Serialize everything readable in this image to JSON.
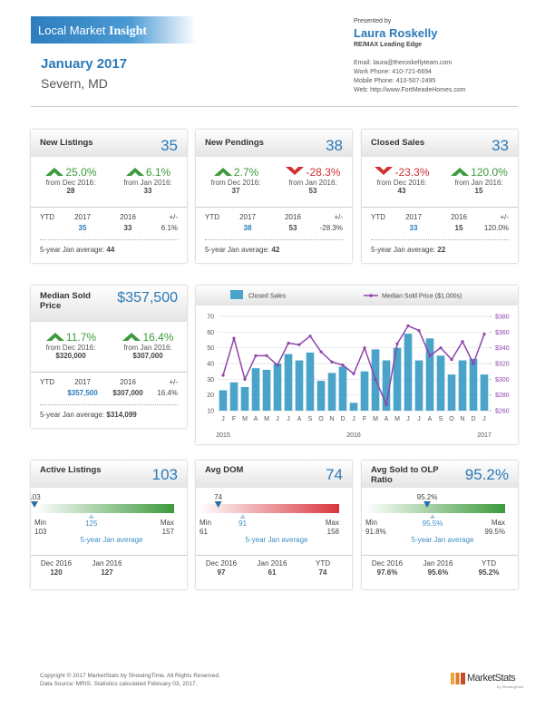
{
  "header": {
    "brand": "Local Market",
    "brand_bold": "Insight",
    "month": "January 2017",
    "location": "Severn, MD",
    "presented_by": "Presented by",
    "agent": "Laura Roskelly",
    "company": "RE/MAX Leading Edge",
    "contact": [
      "Email: laura@theroskellyteam.com",
      "Work Phone: 410-721-6694",
      "Mobile Phone: 410-507-2495",
      "Web: http://www.FortMeadeHomes.com"
    ]
  },
  "cards": [
    {
      "title": "New Listings",
      "value": "35",
      "changes": [
        {
          "trend": "up",
          "pct": "25.0%",
          "label": "from Dec 2016:",
          "base": "28"
        },
        {
          "trend": "up",
          "pct": "6.1%",
          "label": "from Jan 2016:",
          "base": "33"
        }
      ],
      "ytd": {
        "headers": [
          "YTD",
          "2017",
          "2016",
          "+/-"
        ],
        "values": [
          "35",
          "33",
          "6.1%"
        ]
      },
      "average": {
        "label": "5-year Jan average:",
        "value": "44"
      }
    },
    {
      "title": "New Pendings",
      "value": "38",
      "changes": [
        {
          "trend": "up",
          "pct": "2.7%",
          "label": "from Dec 2016:",
          "base": "37"
        },
        {
          "trend": "down",
          "pct": "-28.3%",
          "label": "from Jan 2016:",
          "base": "53"
        }
      ],
      "ytd": {
        "headers": [
          "YTD",
          "2017",
          "2016",
          "+/-"
        ],
        "values": [
          "38",
          "53",
          "-28.3%"
        ]
      },
      "average": {
        "label": "5-year Jan average:",
        "value": "42"
      }
    },
    {
      "title": "Closed Sales",
      "value": "33",
      "changes": [
        {
          "trend": "down",
          "pct": "-23.3%",
          "label": "from Dec 2016:",
          "base": "43"
        },
        {
          "trend": "up",
          "pct": "120.0%",
          "label": "from Jan 2016:",
          "base": "15"
        }
      ],
      "ytd": {
        "headers": [
          "YTD",
          "2017",
          "2016",
          "+/-"
        ],
        "values": [
          "33",
          "15",
          "120.0%"
        ]
      },
      "average": {
        "label": "5-year Jan average:",
        "value": "22"
      }
    },
    {
      "title": "Median Sold Price",
      "value": "$357,500",
      "changes": [
        {
          "trend": "up",
          "pct": "11.7%",
          "label": "from Dec 2016:",
          "base": "$320,000"
        },
        {
          "trend": "up",
          "pct": "16.4%",
          "label": "from Jan 2016:",
          "base": "$307,000"
        }
      ],
      "ytd": {
        "headers": [
          "YTD",
          "2017",
          "2016",
          "+/-"
        ],
        "values": [
          "$357,500",
          "$307,000",
          "16.4%"
        ]
      },
      "average": {
        "label": "5-year Jan average:",
        "value": "$314,099"
      }
    }
  ],
  "gauge_cards": [
    {
      "title": "Active Listings",
      "value": "103",
      "gauge": {
        "color": "#3d9a3d",
        "current": 103,
        "min_label": "Min",
        "min": 103,
        "max_label": "Max",
        "max": 157,
        "average": 125,
        "average_label": "5-year Jan average"
      },
      "history": [
        {
          "label": "Dec 2016",
          "value": "120"
        },
        {
          "label": "Jan 2016",
          "value": "127"
        }
      ]
    },
    {
      "title": "Avg DOM",
      "value": "74",
      "gauge": {
        "color": "#d9363e",
        "current": 74,
        "min_label": "Min",
        "min": 61,
        "max_label": "Max",
        "max": 158,
        "average": 91,
        "average_label": "5-year Jan average"
      },
      "history": [
        {
          "label": "Dec 2016",
          "value": "97"
        },
        {
          "label": "Jan 2016",
          "value": "61"
        },
        {
          "label": "YTD",
          "value": "74"
        }
      ]
    },
    {
      "title": "Avg Sold to OLP Ratio",
      "value": "95.2%",
      "gauge": {
        "color": "#3d9a3d",
        "current": {
          "value": 95.2,
          "label": "95.2%"
        },
        "min_label": "Min",
        "min": {
          "value": 91.8,
          "label": "91.8%"
        },
        "max_label": "Max",
        "max": {
          "value": 99.5,
          "label": "99.5%"
        },
        "average": {
          "value": 95.5,
          "label": "95.5%"
        },
        "average_label": "5-year Jan average"
      },
      "history": [
        {
          "label": "Dec 2016",
          "value": "97.6%"
        },
        {
          "label": "Jan 2016",
          "value": "95.6%"
        },
        {
          "label": "YTD",
          "value": "95.2%"
        }
      ]
    }
  ],
  "chart_data": {
    "type": "bar",
    "categories": [
      "J",
      "F",
      "M",
      "A",
      "M",
      "J",
      "J",
      "A",
      "S",
      "O",
      "N",
      "D",
      "J",
      "F",
      "M",
      "A",
      "M",
      "J",
      "J",
      "A",
      "S",
      "O",
      "N",
      "D",
      "J"
    ],
    "years": [
      "2015",
      "2016",
      "2017"
    ],
    "series": [
      {
        "name": "Closed Sales",
        "type": "bar",
        "color": "#4aa3c9",
        "values": [
          23,
          28,
          25,
          37,
          36,
          40,
          46,
          42,
          47,
          29,
          34,
          38,
          15,
          35,
          49,
          42,
          50,
          59,
          42,
          56,
          45,
          33,
          42,
          43,
          33
        ]
      },
      {
        "name": "Median Sold Price ($1,000s)",
        "type": "line",
        "axis": "y2",
        "color": "#8e44ad",
        "values": [
          305,
          352,
          300,
          330,
          330,
          318,
          346,
          344,
          355,
          335,
          322,
          318,
          307,
          340,
          300,
          268,
          345,
          368,
          362,
          330,
          340,
          325,
          348,
          320,
          357.5
        ]
      }
    ],
    "ylim": [
      10,
      70
    ],
    "yticks": [
      10,
      20,
      30,
      40,
      50,
      60,
      70
    ],
    "y2lim": [
      260,
      380
    ],
    "y2ticks": [
      {
        "value": 260,
        "label": "$260"
      },
      {
        "value": 280,
        "label": "$280"
      },
      {
        "value": 300,
        "label": "$300"
      },
      {
        "value": 320,
        "label": "$320"
      },
      {
        "value": 340,
        "label": "$340"
      },
      {
        "value": 360,
        "label": "$360"
      },
      {
        "value": 380,
        "label": "$380"
      }
    ],
    "grid": true
  },
  "footer": {
    "copyright": "Copyright © 2017 MarketStats by ShowingTime. All Rights Reserved.",
    "source": "Data Source: MRIS. Statistics calculated February 03, 2017.",
    "logo": "MarketStats",
    "logo_sub": "by ShowingTime"
  }
}
